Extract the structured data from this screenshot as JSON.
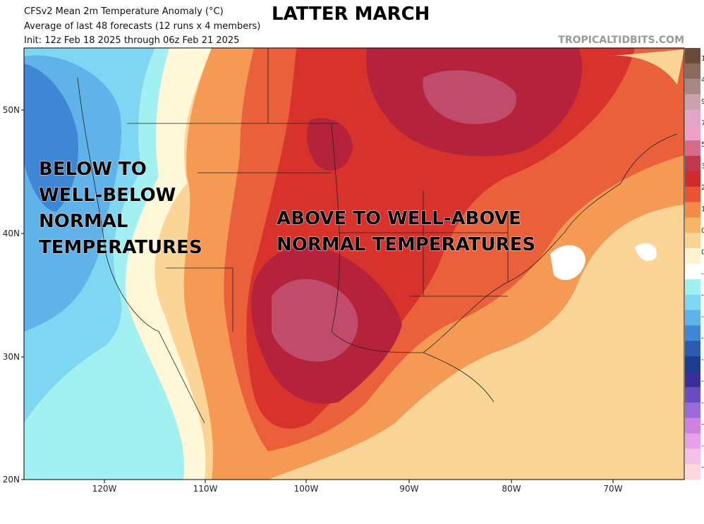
{
  "header": {
    "title": "CFSv2 Mean 2m Temperature Anomaly (°C)",
    "headline": "LATTER MARCH",
    "subtitle": "Average of last 48 forecasts (12 runs x 4 members)",
    "init": "Init: 12z Feb 18 2025 through 06z Feb 21 2025",
    "watermark": "TROPICALTIDBITS.COM"
  },
  "annotations": [
    "BELOW TO WELL-BELOW NORMAL TEMPERATURES",
    "ABOVE TO WELL-ABOVE NORMAL TEMPERATURES"
  ],
  "lat_labels": [
    "50N",
    "40N",
    "30N",
    "20N"
  ],
  "lon_labels": [
    "120W",
    "110W",
    "100W",
    "90W",
    "80W",
    "70W"
  ],
  "colorbar_labels": [
    "1",
    "4",
    "9",
    "7",
    "5",
    "3",
    "2",
    "1",
    "0",
    "0",
    "-",
    "-",
    "-",
    "-",
    "-",
    "-",
    "-",
    "-",
    "-",
    "-"
  ]
}
